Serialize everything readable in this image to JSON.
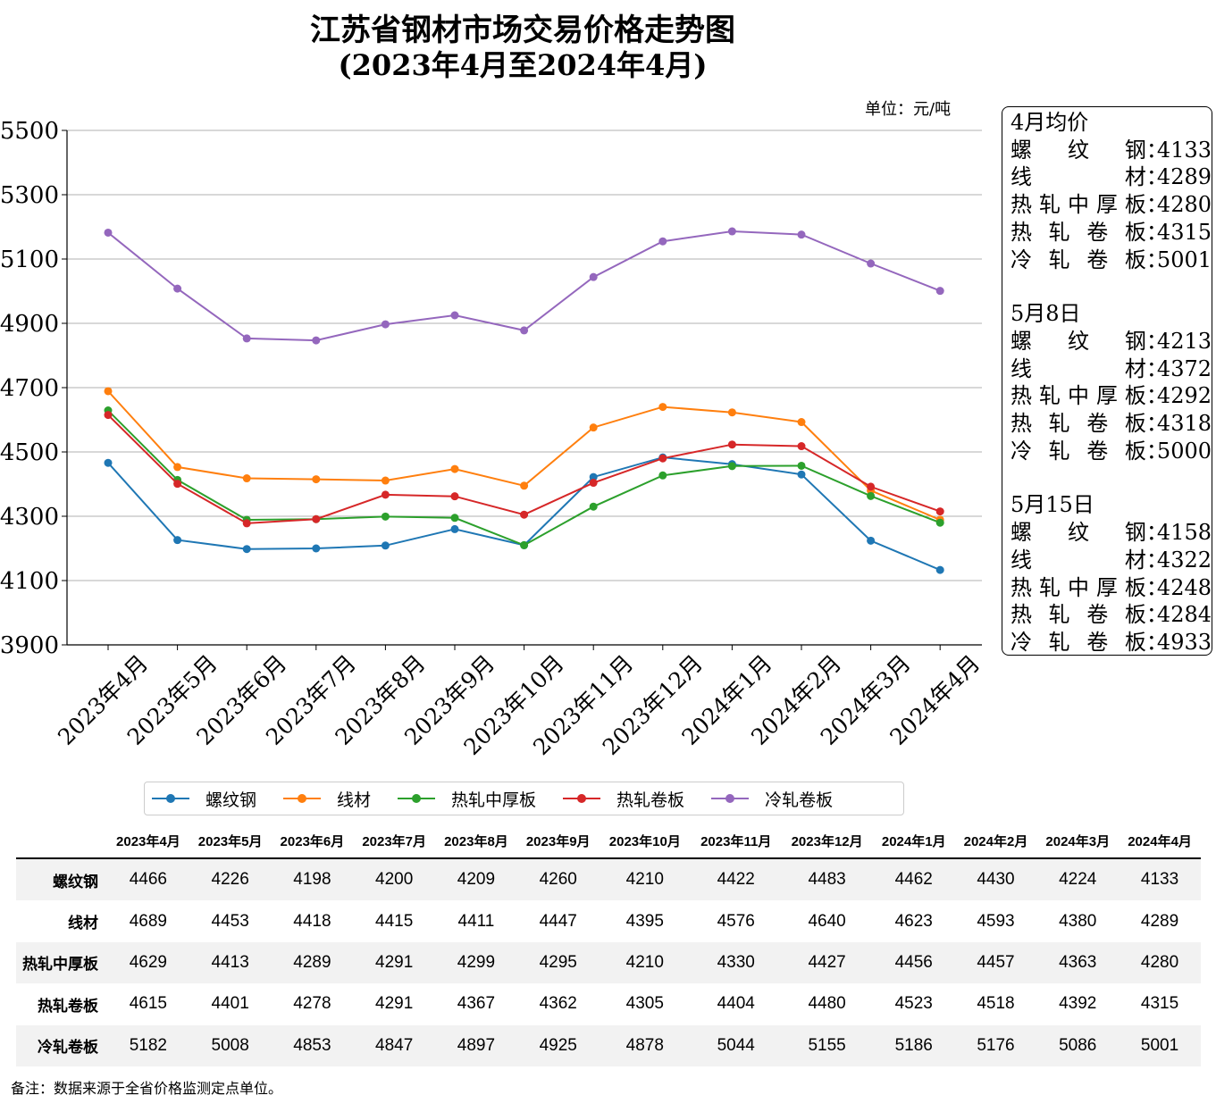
{
  "title_line1": "江苏省钢材市场交易价格走势图",
  "title_line2": "(2023年4月至2024年4月)",
  "unit": "单位：元/吨",
  "colors": {
    "螺纹钢": "#1f77b4",
    "线材": "#ff7f0e",
    "热轧中厚板": "#2ca02c",
    "热轧卷板": "#d62728",
    "冷轧卷板": "#9467bd"
  },
  "chart_data": {
    "type": "line",
    "categories": [
      "2023年4月",
      "2023年5月",
      "2023年6月",
      "2023年7月",
      "2023年8月",
      "2023年9月",
      "2023年10月",
      "2023年11月",
      "2023年12月",
      "2024年1月",
      "2024年2月",
      "2024年3月",
      "2024年4月"
    ],
    "series": [
      {
        "name": "螺纹钢",
        "values": [
          4466,
          4226,
          4198,
          4200,
          4209,
          4260,
          4210,
          4422,
          4483,
          4462,
          4430,
          4224,
          4133
        ]
      },
      {
        "name": "线材",
        "values": [
          4689,
          4453,
          4418,
          4415,
          4411,
          4447,
          4395,
          4576,
          4640,
          4623,
          4593,
          4380,
          4289
        ]
      },
      {
        "name": "热轧中厚板",
        "values": [
          4629,
          4413,
          4289,
          4291,
          4299,
          4295,
          4210,
          4330,
          4427,
          4456,
          4457,
          4363,
          4280
        ]
      },
      {
        "name": "热轧卷板",
        "values": [
          4615,
          4401,
          4278,
          4291,
          4367,
          4362,
          4305,
          4404,
          4480,
          4523,
          4518,
          4392,
          4315
        ]
      },
      {
        "name": "冷轧卷板",
        "values": [
          5182,
          5008,
          4853,
          4847,
          4897,
          4925,
          4878,
          5044,
          5155,
          5186,
          5176,
          5086,
          5001
        ]
      }
    ],
    "ylim": [
      3900,
      5500
    ],
    "yticks": [
      3900,
      4100,
      4300,
      4500,
      4700,
      4900,
      5100,
      5300,
      5500
    ],
    "grid": "horizontal",
    "legend": "bottom"
  },
  "info_box": [
    {
      "heading": "4月均价",
      "rows": [
        {
          "name": "螺纹钢",
          "value": "4133"
        },
        {
          "name": "线材",
          "value": "4289"
        },
        {
          "name": "热轧中厚板",
          "value": "4280"
        },
        {
          "name": "热轧卷板",
          "value": "4315"
        },
        {
          "name": "冷轧卷板",
          "value": "5001"
        }
      ]
    },
    {
      "heading": "5月8日",
      "rows": [
        {
          "name": "螺纹钢",
          "value": "4213"
        },
        {
          "name": "线材",
          "value": "4372"
        },
        {
          "name": "热轧中厚板",
          "value": "4292"
        },
        {
          "name": "热轧卷板",
          "value": "4318"
        },
        {
          "name": "冷轧卷板",
          "value": "5000"
        }
      ]
    },
    {
      "heading": "5月15日",
      "rows": [
        {
          "name": "螺纹钢",
          "value": "4158"
        },
        {
          "name": "线材",
          "value": "4322"
        },
        {
          "name": "热轧中厚板",
          "value": "4248"
        },
        {
          "name": "热轧卷板",
          "value": "4284"
        },
        {
          "name": "冷轧卷板",
          "value": "4933"
        }
      ]
    }
  ],
  "note": "备注：数据来源于全省价格监测定点单位。"
}
